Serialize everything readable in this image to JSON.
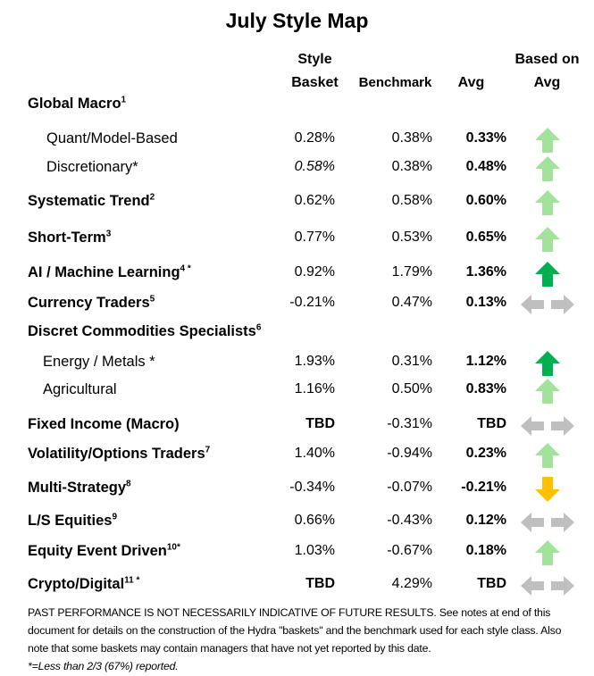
{
  "title": "July Style Map",
  "headers": {
    "style_basket": "Style Basket",
    "benchmark": "Benchmark",
    "avg": "Avg",
    "based_on_avg": "Based on Avg"
  },
  "colors": {
    "up_light": "#a3e29b",
    "up_dark": "#00b050",
    "sideways": "#bfbfbf",
    "down": "#ffc000"
  },
  "rows": [
    {
      "label": "Global Macro",
      "sup": "1",
      "style": "bold",
      "basket": "",
      "benchmark": "",
      "avg": "",
      "arrow": ""
    },
    {
      "label": "Quant/Model-Based",
      "sup": "",
      "style": "sub",
      "basket": "0.28%",
      "benchmark": "0.38%",
      "avg": "0.33%",
      "arrow": "up-light"
    },
    {
      "label": "Discretionary*",
      "sup": "",
      "style": "sub",
      "basket": "0.58%",
      "basket_italic": true,
      "benchmark": "0.38%",
      "avg": "0.48%",
      "arrow": "up-light"
    },
    {
      "label": "Systematic Trend",
      "sup": "2",
      "style": "bold",
      "basket": "0.62%",
      "benchmark": "0.58%",
      "avg": "0.60%",
      "arrow": "up-light"
    },
    {
      "label": "Short-Term",
      "sup": "3",
      "style": "bold",
      "basket": "0.77%",
      "benchmark": "0.53%",
      "avg": "0.65%",
      "arrow": "up-light"
    },
    {
      "label": "AI / Machine Learning",
      "sup": "4 *",
      "style": "bold",
      "basket": "0.92%",
      "benchmark": "1.79%",
      "avg": "1.36%",
      "arrow": "up-dark"
    },
    {
      "label": "Currency Traders",
      "sup": "5",
      "style": "bold",
      "basket": "-0.21%",
      "benchmark": "0.47%",
      "avg": "0.13%",
      "arrow": "sideways"
    },
    {
      "label": "Discret Commodities Specialists",
      "sup": "6",
      "style": "bold",
      "basket": "",
      "benchmark": "",
      "avg": "",
      "arrow": ""
    },
    {
      "label": "Energy / Metals *",
      "sup": "",
      "style": "sub2",
      "basket": "1.93%",
      "benchmark": "0.31%",
      "avg": "1.12%",
      "arrow": "up-dark"
    },
    {
      "label": "Agricultural",
      "sup": "",
      "style": "sub2",
      "basket": "1.16%",
      "benchmark": "0.50%",
      "avg": "0.83%",
      "arrow": "up-light"
    },
    {
      "label": "Fixed Income (Macro)",
      "sup": "",
      "style": "bold",
      "basket": "TBD",
      "basket_bold": true,
      "benchmark": "-0.31%",
      "avg": "TBD",
      "arrow": "sideways"
    },
    {
      "label": "Volatility/Options Traders",
      "sup": "7",
      "style": "bold",
      "basket": "1.40%",
      "benchmark": "-0.94%",
      "avg": "0.23%",
      "arrow": "up-light"
    },
    {
      "label": "Multi-Strategy",
      "sup": "8",
      "style": "bold",
      "basket": "-0.34%",
      "benchmark": "-0.07%",
      "avg": "-0.21%",
      "arrow": "down"
    },
    {
      "label": "L/S Equities",
      "sup": "9",
      "style": "bold",
      "basket": "0.66%",
      "benchmark": "-0.43%",
      "avg": "0.12%",
      "arrow": "sideways"
    },
    {
      "label": "Equity Event Driven",
      "sup": "10*",
      "style": "bold",
      "basket": "1.03%",
      "benchmark": "-0.67%",
      "avg": "0.18%",
      "arrow": "up-light"
    },
    {
      "label": "Crypto/Digital",
      "sup": "11 *",
      "style": "bold",
      "basket": "TBD",
      "basket_bold": true,
      "benchmark": "4.29%",
      "avg": "TBD",
      "arrow": "sideways"
    }
  ],
  "footer": {
    "disclaimer": "PAST PERFORMANCE IS NOT NECESSARILY INDICATIVE OF FUTURE RESULTS.  See notes at end of this document for details on the construction of the Hydra \"baskets\" and the benchmark used for each style class.  Also note that some baskets may contain managers that have not yet reported by this date.",
    "note": "*=Less than 2/3 (67%) reported."
  }
}
